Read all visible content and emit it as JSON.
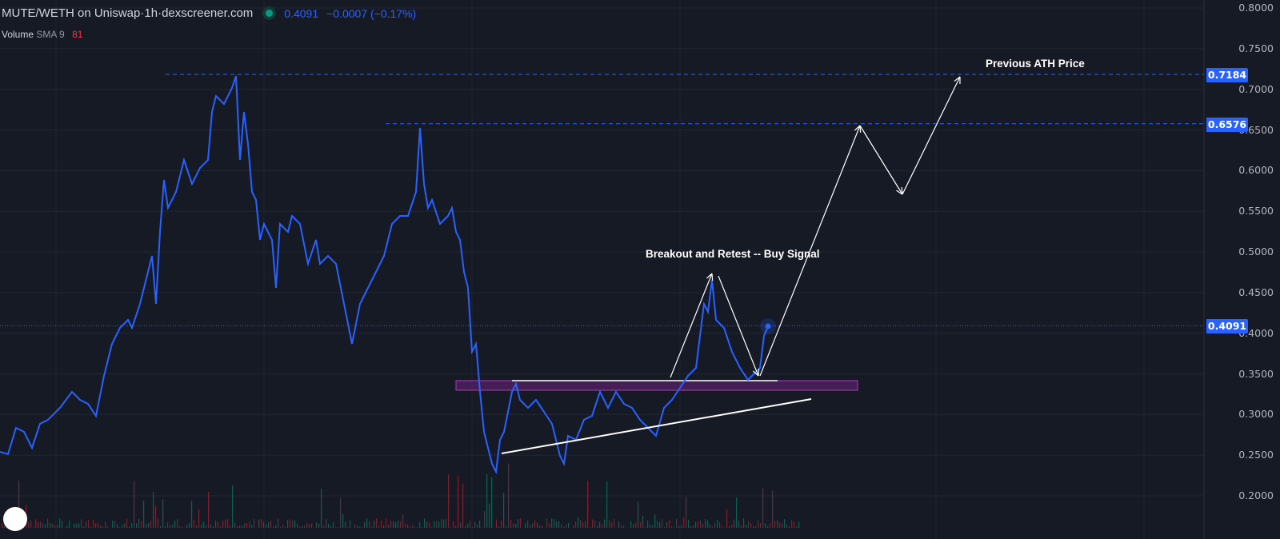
{
  "header": {
    "symbol": "MUTE/WETH on Uniswap",
    "sep1": " · ",
    "interval": "1h",
    "sep2": " · ",
    "source": "dexscreener.com",
    "last_price": "0.4091",
    "change": "−0.0007 (−0.17%)"
  },
  "volume_indicator": {
    "label": "Volume",
    "sma": "SMA 9",
    "value": "81"
  },
  "price_tags": {
    "ath": "0.7184",
    "high2": "0.6576",
    "current": "0.4091"
  },
  "annotations": {
    "breakout": "Breakout and Retest -- Buy Signal",
    "ath": "Previous ATH Price"
  },
  "logo": "TV",
  "colors": {
    "background": "#161a25",
    "line": "#2962ff",
    "tag": "#2962ff",
    "zone": "#9c27b0",
    "up_volume": "#089981",
    "down_volume": "#f23645"
  },
  "chart_data": {
    "type": "line",
    "title": "",
    "ylim": [
      0.2,
      0.8
    ],
    "grid": true,
    "y_ticks": [
      "0.8000",
      "0.7500",
      "0.7000",
      "0.6500",
      "0.6000",
      "0.5500",
      "0.5000",
      "0.4500",
      "0.4000",
      "0.3500",
      "0.3000",
      "0.2500",
      "0.2000"
    ],
    "x": [
      0,
      2,
      4,
      6,
      8,
      10,
      12,
      15,
      18,
      20,
      22,
      24,
      26,
      28,
      30,
      32,
      33,
      35,
      37,
      38,
      39,
      40,
      41,
      42,
      44,
      46,
      48,
      50,
      52,
      53,
      54,
      56,
      58,
      59,
      60,
      61,
      62,
      63,
      64,
      65,
      66,
      68,
      69,
      70,
      72,
      73,
      75,
      77,
      79,
      80,
      82,
      84,
      86,
      88,
      90,
      92,
      94,
      96,
      98,
      100,
      102,
      104,
      105,
      106,
      107,
      108,
      110,
      112,
      113,
      114,
      115,
      116,
      117,
      118,
      119,
      120,
      121,
      122,
      123,
      124,
      125,
      126,
      128,
      129,
      130,
      132,
      134,
      136,
      138,
      140,
      141,
      142,
      144,
      146,
      148,
      150,
      152,
      154,
      156,
      158,
      160,
      162,
      164,
      166,
      168,
      170,
      172,
      174,
      176,
      177,
      178,
      179,
      181,
      183,
      185,
      187,
      189,
      190,
      191,
      192
    ],
    "series": [
      {
        "values": [
          0.2541,
          0.2512,
          0.2836,
          0.2787,
          0.259,
          0.2885,
          0.2935,
          0.3082,
          0.3279,
          0.318,
          0.3131,
          0.2984,
          0.3476,
          0.3869,
          0.4066,
          0.4164,
          0.4066,
          0.4361,
          0.4754,
          0.4951,
          0.4361,
          0.5246,
          0.5885,
          0.5541,
          0.5738,
          0.6131,
          0.5836,
          0.6033,
          0.6131,
          0.6721,
          0.6918,
          0.682,
          0.7016,
          0.7164,
          0.6131,
          0.6721,
          0.6328,
          0.5738,
          0.5639,
          0.5148,
          0.5344,
          0.5148,
          0.4557,
          0.5344,
          0.5246,
          0.5443,
          0.5344,
          0.4853,
          0.5148,
          0.4853,
          0.4951,
          0.4853,
          0.4361,
          0.3869,
          0.4361,
          0.4557,
          0.4754,
          0.4951,
          0.5344,
          0.5443,
          0.5443,
          0.5738,
          0.6525,
          0.5836,
          0.5541,
          0.5639,
          0.5344,
          0.5443,
          0.5541,
          0.5246,
          0.5148,
          0.4754,
          0.4557,
          0.3771,
          0.3869,
          0.3279,
          0.2787,
          0.259,
          0.2394,
          0.2295,
          0.2689,
          0.2787,
          0.3279,
          0.3378,
          0.318,
          0.3082,
          0.318,
          0.3033,
          0.2885,
          0.2492,
          0.2394,
          0.2738,
          0.2689,
          0.2935,
          0.2984,
          0.3279,
          0.3082,
          0.3279,
          0.3131,
          0.3082,
          0.2935,
          0.2836,
          0.2738,
          0.3082,
          0.318,
          0.3328,
          0.3476,
          0.3574,
          0.4361,
          0.4262,
          0.4656,
          0.4164,
          0.4066,
          0.3771,
          0.3574,
          0.3426,
          0.3525,
          0.3574,
          0.3967,
          0.4085
        ]
      }
    ]
  }
}
